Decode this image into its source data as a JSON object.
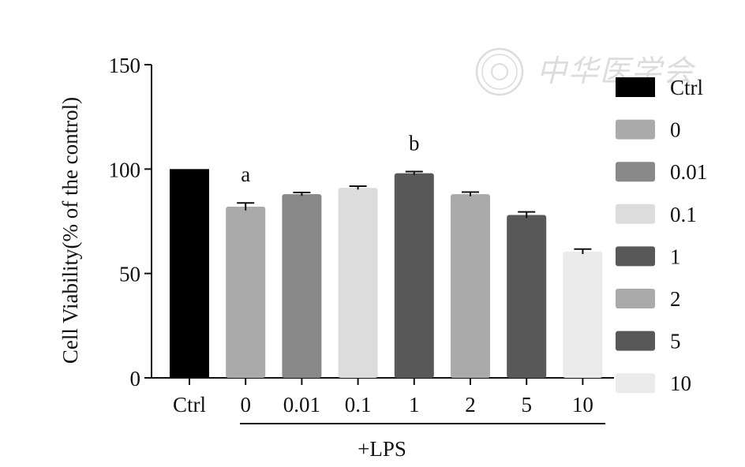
{
  "watermark": {
    "text": "中华医学会",
    "color": "#d9d9d9"
  },
  "chart_data": {
    "type": "bar",
    "ylabel": "Cell Viability(% of the control)",
    "xlabel": "",
    "group_label": "+LPS",
    "ylim": [
      0,
      150
    ],
    "yticks": [
      "0",
      "50",
      "100",
      "150"
    ],
    "categories": [
      "Ctrl",
      "0",
      "0.01",
      "0.1",
      "1",
      "2",
      "5",
      "10"
    ],
    "values": [
      100,
      82,
      88,
      91,
      98,
      88,
      78,
      60.5
    ],
    "errors": [
      0,
      1.8,
      0.8,
      0.8,
      0.8,
      1.0,
      1.5,
      1.2
    ],
    "colors": [
      "#000000",
      "#aaaaaa",
      "#888888",
      "#dcdcdc",
      "#585858",
      "#aaaaaa",
      "#585858",
      "#eaeaea"
    ],
    "annotations": [
      {
        "category": "0",
        "text": "a"
      },
      {
        "category": "1",
        "text": "b"
      }
    ],
    "legend": {
      "position": "right",
      "entries": [
        "Ctrl",
        "0",
        "0.01",
        "0.1",
        "1",
        "2",
        "5",
        "10"
      ]
    },
    "grid": false
  }
}
